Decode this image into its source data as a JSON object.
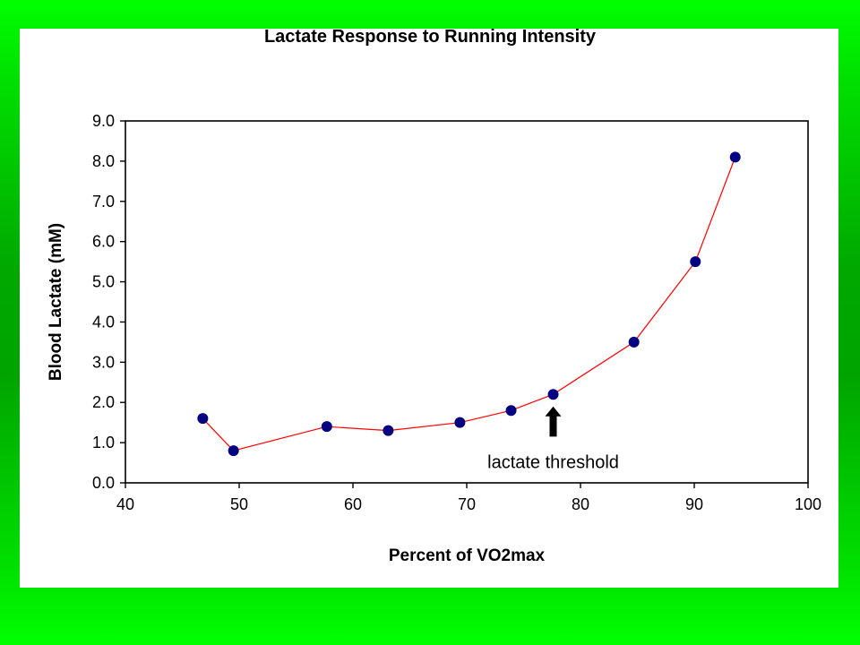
{
  "chart_data": {
    "type": "scatter",
    "title": "Lactate Response to Running Intensity",
    "xlabel": "Percent of VO2max",
    "ylabel": "Blood Lactate (mM)",
    "xlim": [
      40,
      100
    ],
    "ylim": [
      0,
      9
    ],
    "x_ticks": [
      "40",
      "50",
      "60",
      "70",
      "80",
      "90",
      "100"
    ],
    "y_ticks": [
      "0.0",
      "1.0",
      "2.0",
      "3.0",
      "4.0",
      "5.0",
      "6.0",
      "7.0",
      "8.0",
      "9.0"
    ],
    "grid": false,
    "legend": "none",
    "series": [
      {
        "x": [
          46.8,
          49.5,
          57.7,
          63.1,
          69.4,
          73.9,
          77.6,
          84.7,
          90.1,
          93.6
        ],
        "y": [
          1.6,
          0.8,
          1.4,
          1.3,
          1.5,
          1.8,
          2.2,
          3.5,
          5.5,
          8.1
        ],
        "marker_color": "#000080",
        "line_color": "#ff0000"
      }
    ],
    "annotations": [
      {
        "text": "lactate threshold",
        "arrow_x": 77.6,
        "arrow_tip_y": 1.9,
        "arrow_tail_y": 1.15
      }
    ]
  },
  "colors": {
    "background_green": "#00ff00",
    "panel": "#ffffff",
    "marker": "#000080",
    "line": "#ff0000",
    "axis": "#000000"
  }
}
